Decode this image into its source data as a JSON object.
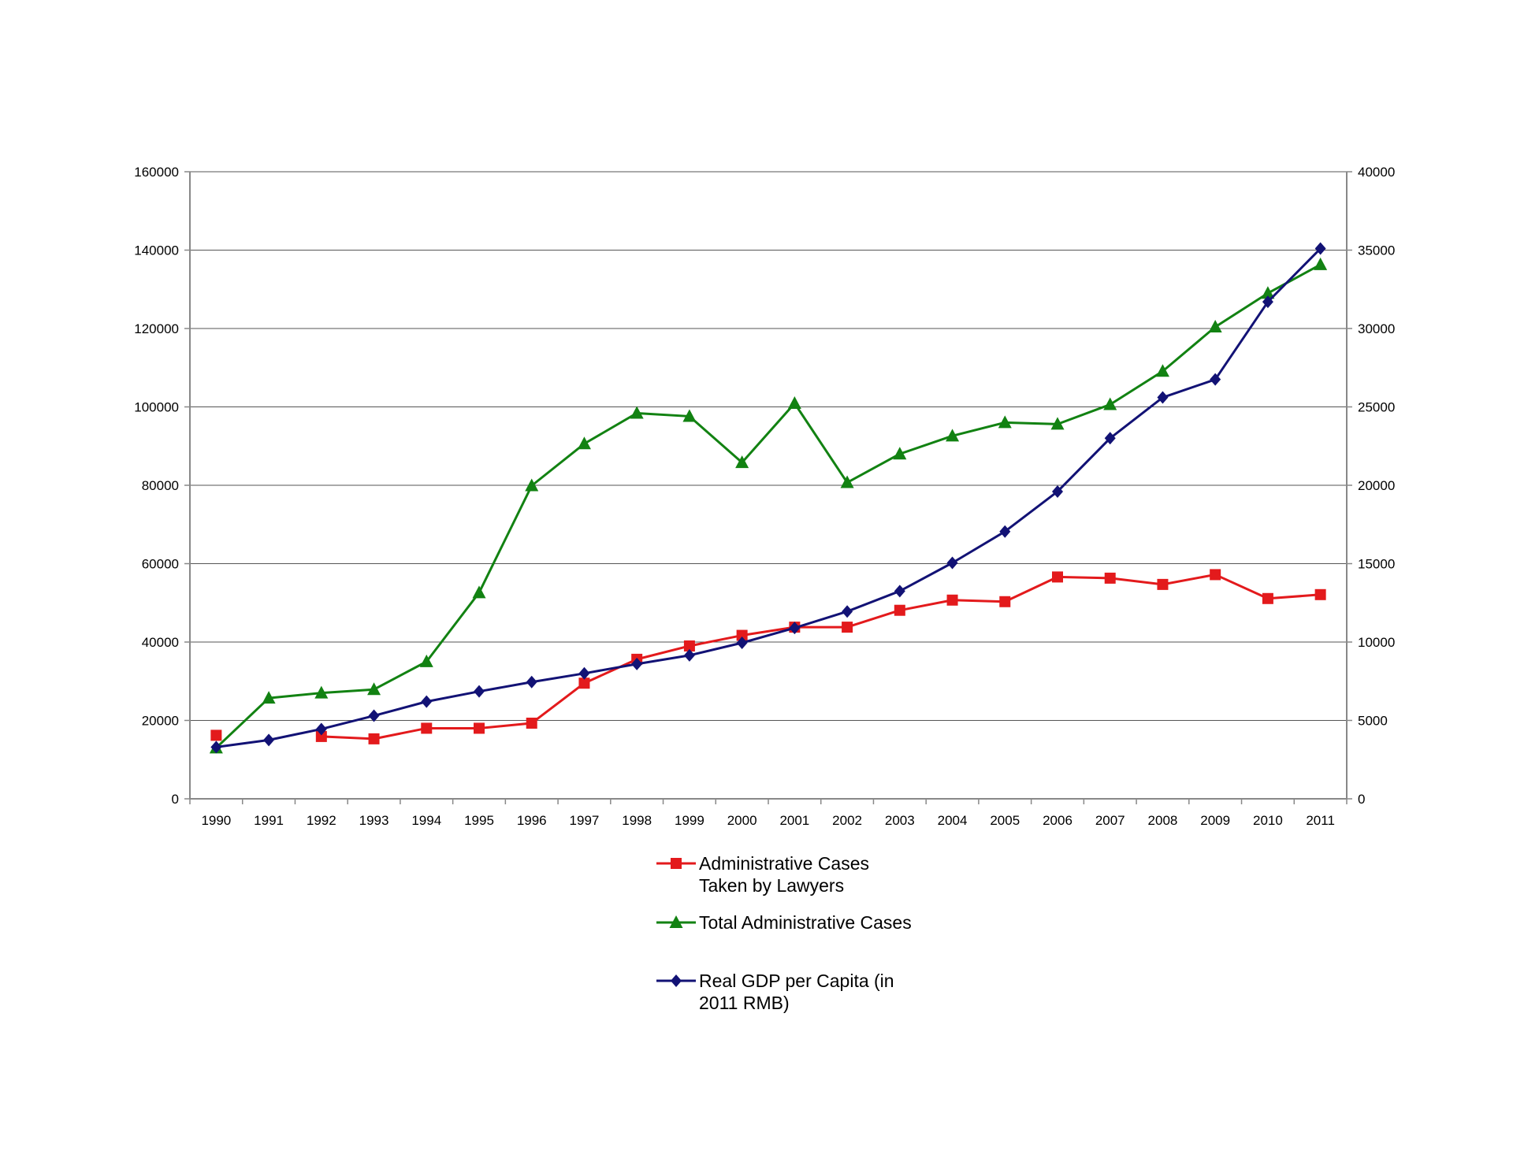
{
  "chart_data": {
    "type": "line",
    "title": "",
    "xlabel": "",
    "ylabel": "",
    "categories": [
      "1990",
      "1991",
      "1992",
      "1993",
      "1994",
      "1995",
      "1996",
      "1997",
      "1998",
      "1999",
      "2000",
      "2001",
      "2002",
      "2003",
      "2004",
      "2005",
      "2006",
      "2007",
      "2008",
      "2009",
      "2010",
      "2011"
    ],
    "y_left": {
      "ylim": [
        0,
        160000
      ],
      "ticks": [
        "0",
        "20000",
        "40000",
        "60000",
        "80000",
        "100000",
        "120000",
        "140000",
        "160000"
      ]
    },
    "y_right": {
      "ylim": [
        0,
        40000
      ],
      "ticks": [
        "0",
        "5000",
        "10000",
        "15000",
        "20000",
        "25000",
        "30000",
        "35000",
        "40000"
      ]
    },
    "grid": true,
    "legend_position": "bottom-center",
    "series": [
      {
        "name": "Administrative Cases Taken by Lawyers",
        "label_lines": [
          "Administrative Cases",
          "Taken by Lawyers"
        ],
        "axis": "left",
        "color": "#e31a1c",
        "marker": "square",
        "values": [
          16200,
          null,
          15900,
          15300,
          18000,
          18000,
          19300,
          29500,
          35600,
          39000,
          41700,
          43800,
          43800,
          48100,
          50700,
          50300,
          56600,
          56300,
          54700,
          57200,
          51100,
          52100
        ]
      },
      {
        "name": "Total Administrative Cases",
        "label_lines": [
          "Total Administrative Cases"
        ],
        "axis": "left",
        "color": "#128212",
        "marker": "triangle",
        "values": [
          13000,
          25700,
          27000,
          27900,
          35000,
          52600,
          79900,
          90600,
          98400,
          97600,
          85800,
          100900,
          80700,
          88000,
          92600,
          96000,
          95600,
          100600,
          109100,
          120400,
          129000,
          136300
        ]
      },
      {
        "name": "Real GDP per Capita (in 2011 RMB)",
        "label_lines": [
          "Real GDP per Capita (in",
          "2011 RMB)"
        ],
        "axis": "right",
        "color": "#121275",
        "marker": "diamond",
        "values": [
          3300,
          3750,
          4450,
          5300,
          6200,
          6850,
          7450,
          8000,
          8600,
          9150,
          9950,
          10900,
          11950,
          13250,
          15050,
          17050,
          19600,
          23000,
          25600,
          26750,
          31700,
          35100
        ]
      }
    ]
  }
}
